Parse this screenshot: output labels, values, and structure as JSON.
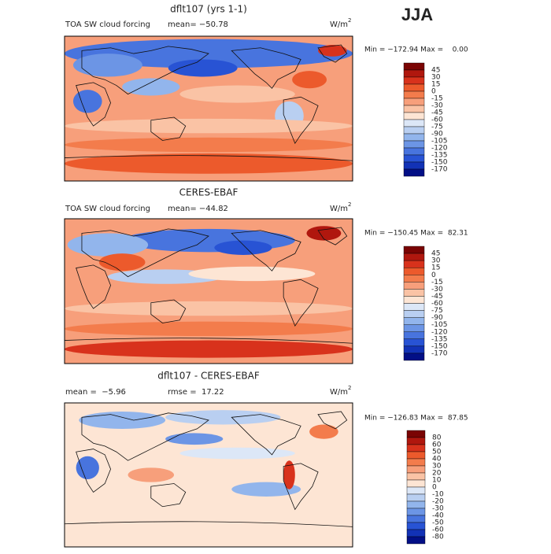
{
  "season": "JJA",
  "panels": [
    {
      "title": "dflt107 (yrs 1-1)",
      "left_label": "TOA SW cloud forcing",
      "stat1": "mean= −50.78",
      "units": "W/m",
      "units_exp": "2",
      "minmax": "Min = −172.94 Max =    0.00",
      "levels": [
        45,
        30,
        15,
        0,
        -15,
        -30,
        -45,
        -60,
        -75,
        -90,
        -105,
        -120,
        -135,
        -150,
        -170
      ],
      "colors": [
        "#7a0403",
        "#b0170e",
        "#d8321c",
        "#ec5a2c",
        "#f37c4c",
        "#f79f7b",
        "#fac3a5",
        "#fde5d4",
        "#dce7f7",
        "#b9cff1",
        "#92b5ec",
        "#6c95e5",
        "#4874de",
        "#2853d4",
        "#1232b6",
        "#020f86"
      ]
    },
    {
      "title": "CERES-EBAF",
      "left_label": "TOA SW cloud forcing",
      "stat1": "mean= −44.82",
      "units": "W/m",
      "units_exp": "2",
      "minmax": "Min = −150.45 Max =  82.31",
      "levels": [
        45,
        30,
        15,
        0,
        -15,
        -30,
        -45,
        -60,
        -75,
        -90,
        -105,
        -120,
        -135,
        -150,
        -170
      ],
      "colors": [
        "#7a0403",
        "#b0170e",
        "#d8321c",
        "#ec5a2c",
        "#f37c4c",
        "#f79f7b",
        "#fac3a5",
        "#fde5d4",
        "#dce7f7",
        "#b9cff1",
        "#92b5ec",
        "#6c95e5",
        "#4874de",
        "#2853d4",
        "#1232b6",
        "#020f86"
      ]
    },
    {
      "title": "dflt107 - CERES-EBAF",
      "stat0": "mean =  −5.96",
      "stat1": "rmse =  17.22",
      "units": "W/m",
      "units_exp": "2",
      "minmax": "Min = −126.83 Max =  87.85",
      "levels": [
        80,
        60,
        50,
        40,
        30,
        20,
        10,
        0,
        -10,
        -20,
        -30,
        -40,
        -50,
        -60,
        -80
      ],
      "colors": [
        "#7a0403",
        "#b0170e",
        "#d8321c",
        "#ec5a2c",
        "#f37c4c",
        "#f79f7b",
        "#fac3a5",
        "#fde5d4",
        "#dce7f7",
        "#b9cff1",
        "#92b5ec",
        "#6c95e5",
        "#4874de",
        "#2853d4",
        "#1232b6",
        "#020f86"
      ]
    }
  ]
}
